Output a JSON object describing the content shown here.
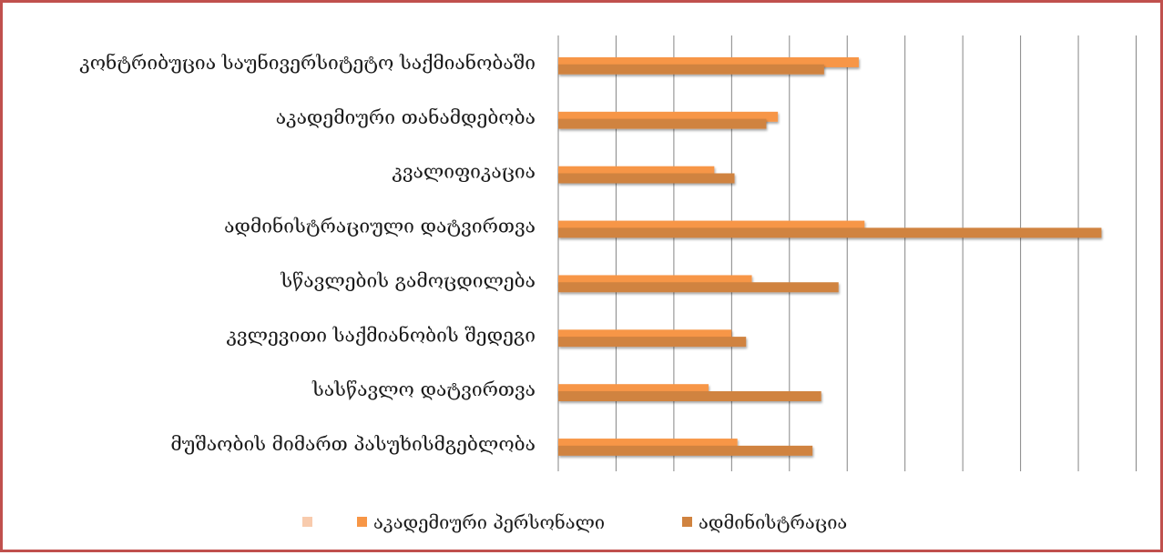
{
  "chart_data": {
    "type": "bar",
    "orientation": "horizontal",
    "title": "",
    "xlabel": "",
    "ylabel": "",
    "xlim": [
      0,
      10
    ],
    "grid": true,
    "legend_position": "bottom",
    "categories": [
      "კონტრიბუცია საუნივერსიტეტო საქმიანობაში",
      "აკადემიური თანამდებობა",
      "კვალიფიკაცია",
      "ადმინისტრაციული დატვირთვა",
      "სწავლების გამოცდილება",
      "კვლევითი საქმიანობის შედეგი",
      "სასწავლო დატვირთვა",
      "მუშაობის მიმართ პასუხისმგებლობა"
    ],
    "series": [
      {
        "name": "",
        "color": "#f8cbad",
        "values": [
          0,
          0,
          0,
          0,
          0,
          0,
          0,
          0
        ]
      },
      {
        "name": "აკადემიური პერსონალი",
        "color": "#f79646",
        "values": [
          5.2,
          3.8,
          2.7,
          5.3,
          3.35,
          3.0,
          2.6,
          3.1
        ]
      },
      {
        "name": "ადმინისტრაცია",
        "color": "#d0833f",
        "values": [
          4.6,
          3.6,
          3.05,
          9.4,
          4.85,
          3.25,
          4.55,
          4.4
        ]
      }
    ]
  }
}
